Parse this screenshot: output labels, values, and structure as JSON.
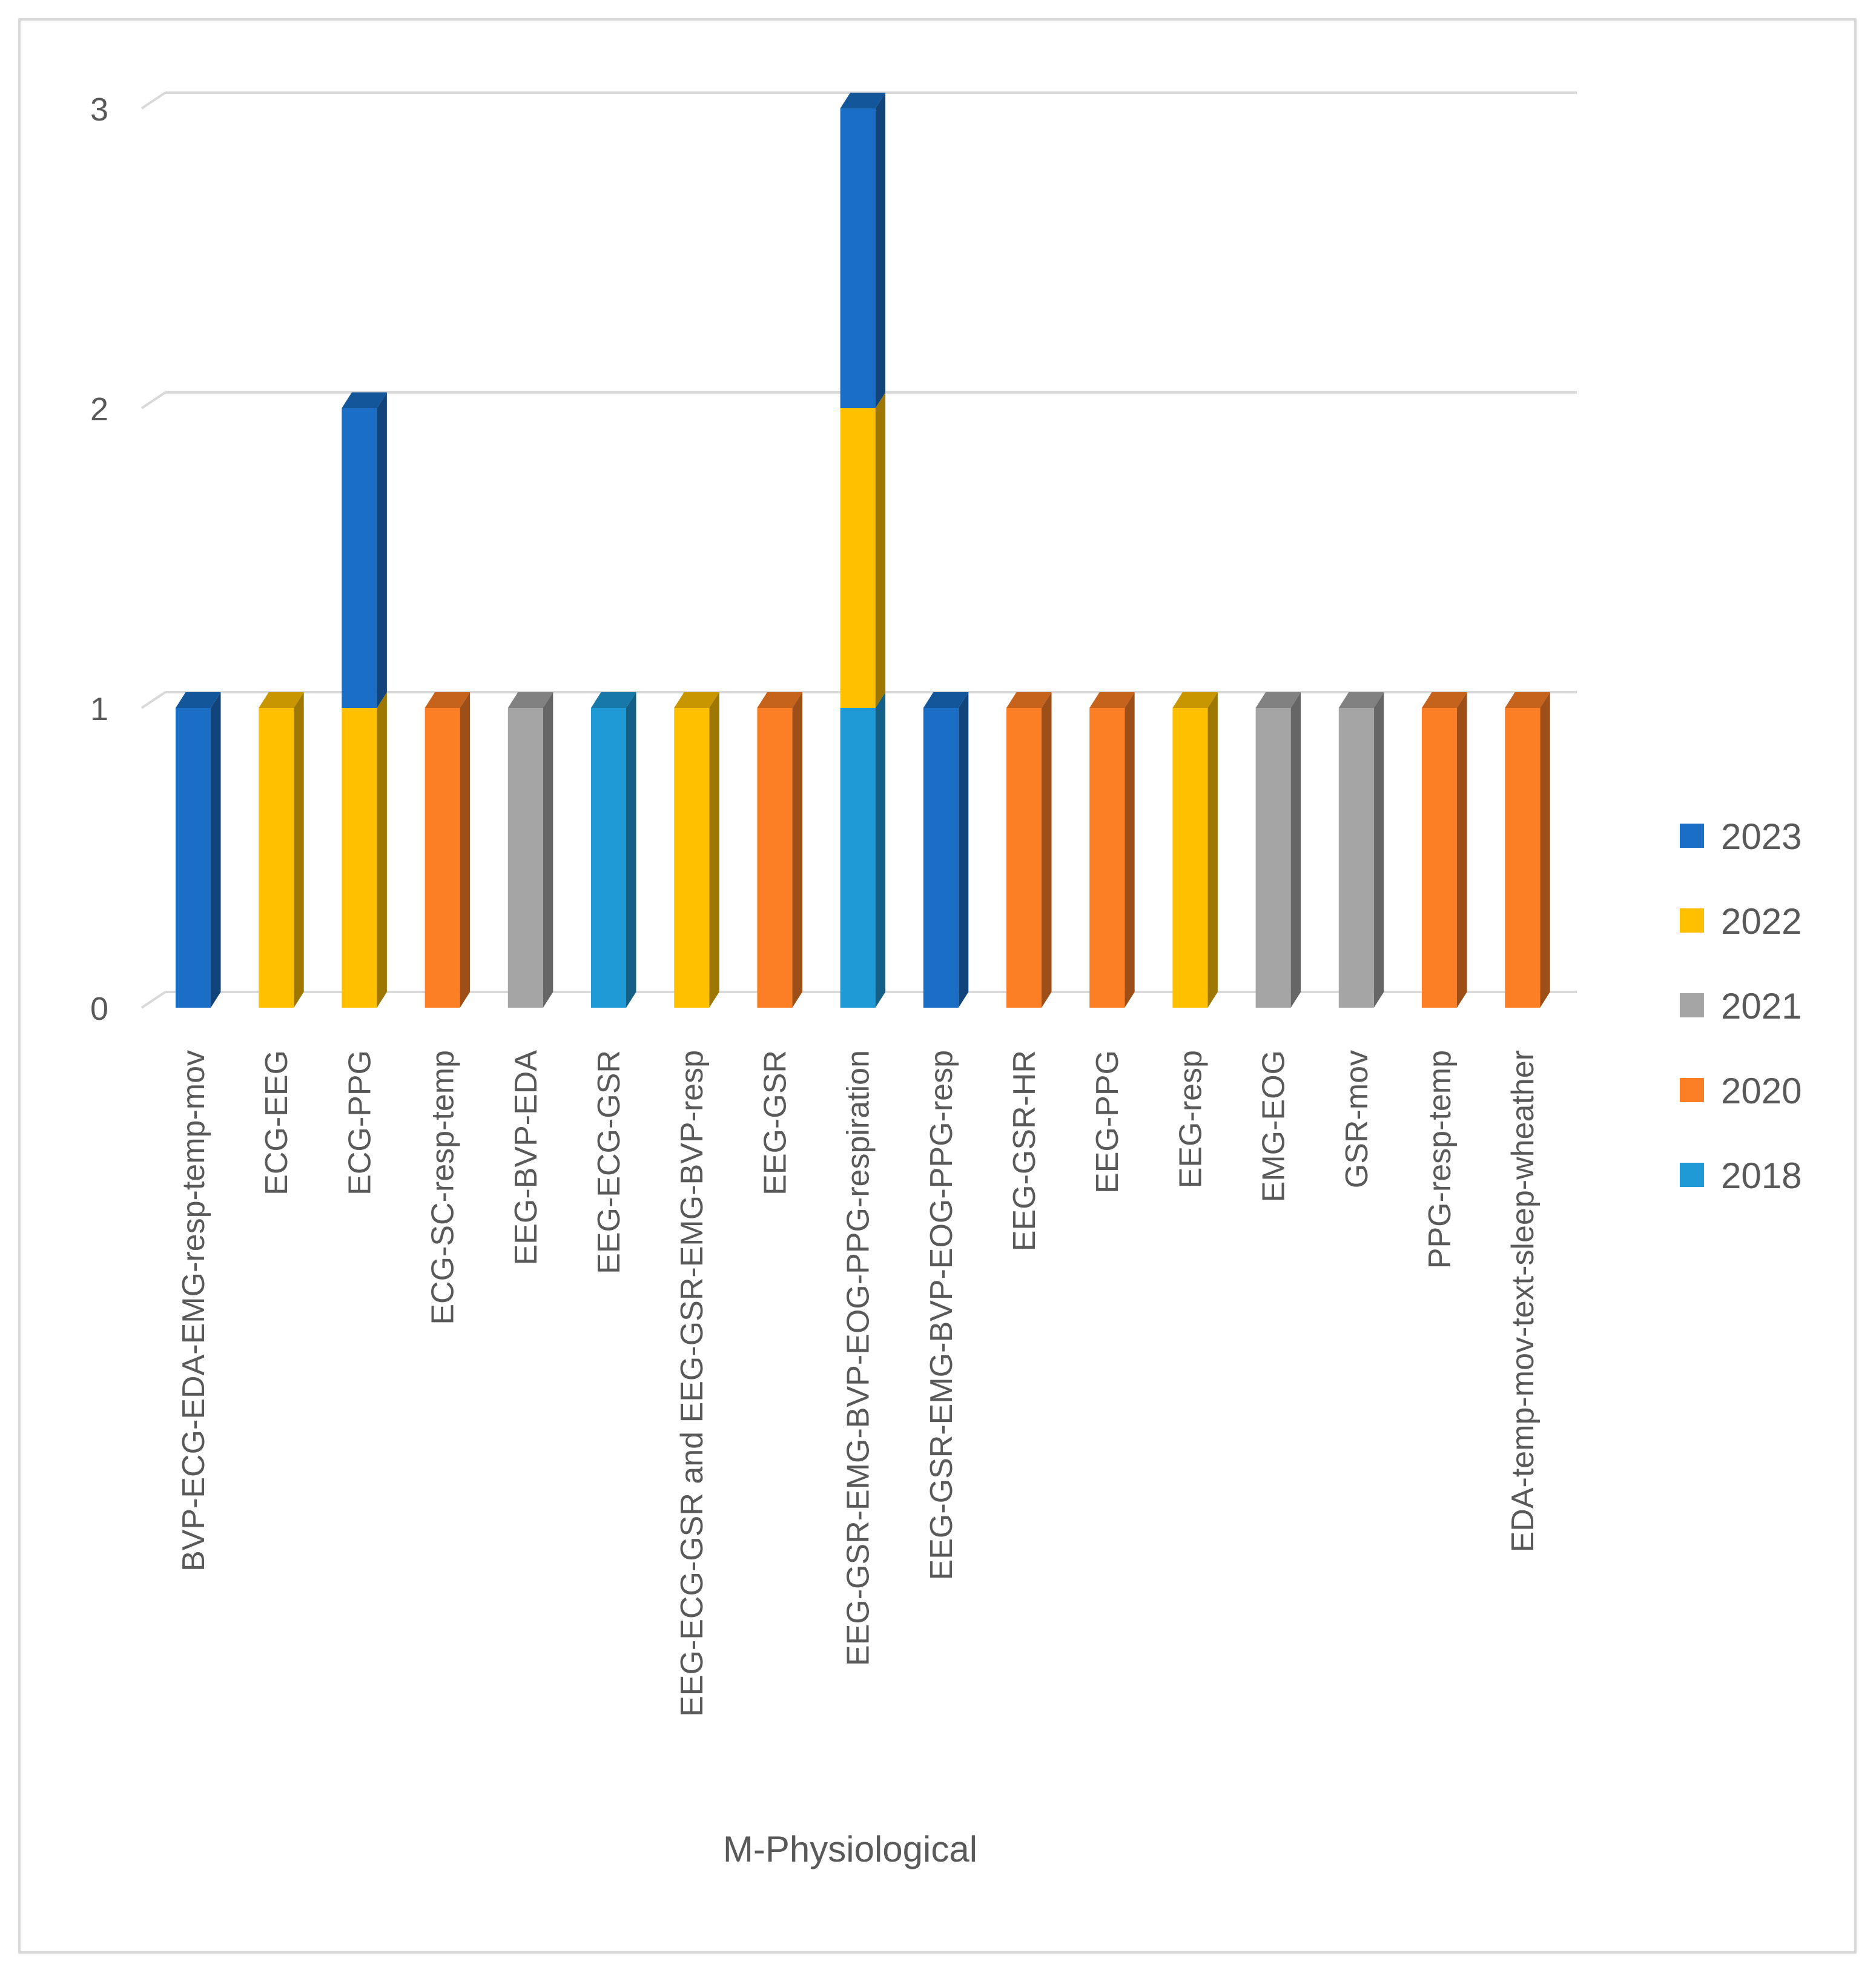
{
  "chart_data": {
    "type": "bar",
    "stacked": true,
    "three_d": true,
    "title": "",
    "xlabel": "M-Physiological",
    "ylabel": "",
    "ylim": [
      0,
      3
    ],
    "yticks": [
      0,
      1,
      2,
      3
    ],
    "grid": true,
    "legend_position": "right",
    "categories": [
      "BVP-ECG-EDA-EMG-resp-temp-mov",
      "ECG-EEG",
      "ECG-PPG",
      "ECG-SC-resp-temp",
      "EEG-BVP-EDA",
      "EEG-ECG-GSR",
      "EEG-ECG-GSR and EEG-GSR-EMG-BVP-resp",
      "EEG-GSR",
      "EEG-GSR-EMG-BVP-EOG-PPG-respiration",
      "EEG-GSR-EMG-BVP-EOG-PPG-resp",
      "EEG-GSR-HR",
      "EEG-PPG",
      "EEG-resp",
      "EMG-EOG",
      "GSR-mov",
      "PPG-resp-temp",
      "EDA-temp-mov-text-sleep-wheather"
    ],
    "series": [
      {
        "name": "2018",
        "color": "#1f9ad6",
        "values": [
          0,
          0,
          0,
          0,
          0,
          1,
          0,
          0,
          1,
          0,
          0,
          0,
          0,
          0,
          0,
          0,
          0
        ]
      },
      {
        "name": "2020",
        "color": "#fd7f25",
        "values": [
          0,
          0,
          0,
          1,
          0,
          0,
          0,
          1,
          0,
          0,
          1,
          1,
          0,
          0,
          0,
          1,
          1
        ]
      },
      {
        "name": "2021",
        "color": "#a5a5a5",
        "values": [
          0,
          0,
          0,
          0,
          1,
          0,
          0,
          0,
          0,
          0,
          0,
          0,
          0,
          1,
          1,
          0,
          0
        ]
      },
      {
        "name": "2022",
        "color": "#ffc000",
        "values": [
          0,
          1,
          1,
          0,
          0,
          0,
          1,
          0,
          1,
          0,
          0,
          0,
          1,
          0,
          0,
          0,
          0
        ]
      },
      {
        "name": "2023",
        "color": "#1a6ec5",
        "values": [
          1,
          0,
          1,
          0,
          0,
          0,
          0,
          0,
          1,
          1,
          0,
          0,
          0,
          0,
          0,
          0,
          0
        ]
      }
    ],
    "legend_order": [
      "2023",
      "2022",
      "2021",
      "2020",
      "2018"
    ]
  }
}
